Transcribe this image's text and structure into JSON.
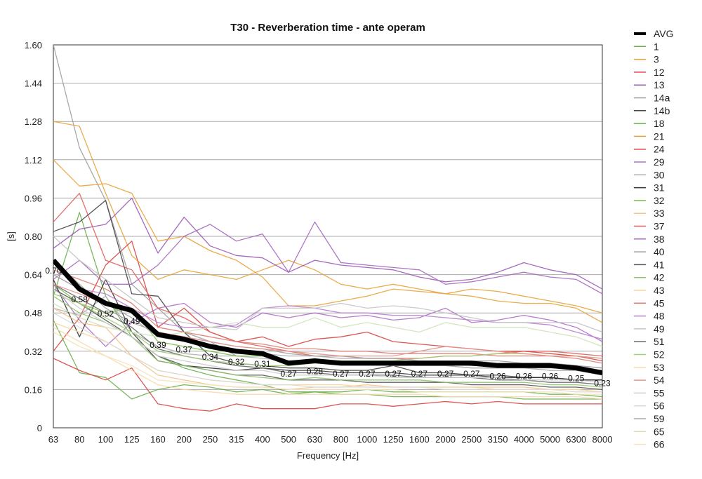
{
  "chart_data": {
    "type": "line",
    "title": "T30 - Reverberation time - ante operam",
    "xlabel": "Frequency [Hz]",
    "ylabel": "[s]",
    "categories": [
      "63",
      "80",
      "100",
      "125",
      "160",
      "200",
      "250",
      "315",
      "400",
      "500",
      "630",
      "800",
      "1000",
      "1250",
      "1600",
      "2000",
      "2500",
      "3150",
      "4000",
      "5000",
      "6300",
      "8000"
    ],
    "ylim": [
      0,
      1.6
    ],
    "yticks": [
      "1.60",
      "1.44",
      "1.28",
      "1.12",
      "0.96",
      "0.80",
      "0.64",
      "0.48",
      "0.32",
      "0.16",
      "0"
    ],
    "grid": true,
    "legend_position": "right",
    "series": [
      {
        "name": "AVG",
        "color": "#000000",
        "emphasis": true,
        "values": [
          0.7,
          0.58,
          0.52,
          0.49,
          0.39,
          0.37,
          0.34,
          0.32,
          0.31,
          0.27,
          0.28,
          0.27,
          0.27,
          0.27,
          0.27,
          0.27,
          0.27,
          0.26,
          0.26,
          0.26,
          0.25,
          0.23
        ],
        "labels": [
          "0.70",
          "0.58",
          "0.52",
          "0.49",
          "0.39",
          "0.37",
          "0.34",
          "0.32",
          "0.31",
          "0.27",
          "0.28",
          "0.27",
          "0.27",
          "0.27",
          "0.27",
          "0.27",
          "0.27",
          "0.26",
          "0.26",
          "0.26",
          "0.25",
          "0.23"
        ]
      },
      {
        "name": "1",
        "color": "#6ab04c",
        "values": [
          0.55,
          0.9,
          0.55,
          0.38,
          0.3,
          0.25,
          0.22,
          0.2,
          0.18,
          0.15,
          0.15,
          0.14,
          0.14,
          0.13,
          0.13,
          0.13,
          0.13,
          0.13,
          0.12,
          0.12,
          0.12,
          0.12
        ]
      },
      {
        "name": "3",
        "color": "#e8a33a",
        "values": [
          1.28,
          1.26,
          0.98,
          0.72,
          0.62,
          0.66,
          0.64,
          0.62,
          0.66,
          0.7,
          0.66,
          0.6,
          0.58,
          0.6,
          0.58,
          0.56,
          0.58,
          0.57,
          0.55,
          0.53,
          0.51,
          0.48
        ]
      },
      {
        "name": "12",
        "color": "#d64541",
        "values": [
          0.32,
          0.46,
          0.68,
          0.78,
          0.42,
          0.5,
          0.4,
          0.36,
          0.38,
          0.34,
          0.37,
          0.38,
          0.4,
          0.36,
          0.35,
          0.34,
          0.33,
          0.32,
          0.32,
          0.31,
          0.3,
          0.28
        ]
      },
      {
        "name": "13",
        "color": "#9b59b6",
        "values": [
          0.75,
          0.83,
          0.85,
          0.96,
          0.73,
          0.88,
          0.76,
          0.72,
          0.71,
          0.65,
          0.7,
          0.68,
          0.67,
          0.66,
          0.63,
          0.61,
          0.62,
          0.65,
          0.69,
          0.66,
          0.64,
          0.58
        ]
      },
      {
        "name": "14a",
        "color": "#9e9e9e",
        "values": [
          1.6,
          1.17,
          0.95,
          0.6,
          0.5,
          0.4,
          0.36,
          0.3,
          0.3,
          0.28,
          0.28,
          0.28,
          0.27,
          0.27,
          0.26,
          0.26,
          0.25,
          0.25,
          0.25,
          0.24,
          0.24,
          0.22
        ]
      },
      {
        "name": "14b",
        "color": "#444444",
        "values": [
          0.82,
          0.86,
          0.95,
          0.56,
          0.55,
          0.4,
          0.3,
          0.27,
          0.26,
          0.25,
          0.25,
          0.24,
          0.24,
          0.26,
          0.23,
          0.23,
          0.22,
          0.22,
          0.21,
          0.21,
          0.2,
          0.2
        ]
      },
      {
        "name": "18",
        "color": "#6ab04c",
        "values": [
          0.45,
          0.23,
          0.21,
          0.12,
          0.16,
          0.18,
          0.17,
          0.15,
          0.16,
          0.14,
          0.15,
          0.15,
          0.16,
          0.15,
          0.15,
          0.15,
          0.15,
          0.15,
          0.15,
          0.14,
          0.14,
          0.13
        ]
      },
      {
        "name": "21",
        "color": "#e8a33a",
        "values": [
          1.12,
          1.01,
          1.02,
          0.98,
          0.78,
          0.8,
          0.74,
          0.7,
          0.63,
          0.51,
          0.51,
          0.53,
          0.55,
          0.58,
          0.57,
          0.56,
          0.55,
          0.53,
          0.52,
          0.52,
          0.5,
          0.44
        ]
      },
      {
        "name": "24",
        "color": "#d64541",
        "values": [
          0.29,
          0.24,
          0.2,
          0.25,
          0.1,
          0.08,
          0.07,
          0.1,
          0.08,
          0.08,
          0.08,
          0.1,
          0.1,
          0.09,
          0.1,
          0.11,
          0.1,
          0.11,
          0.1,
          0.1,
          0.1,
          0.1
        ]
      },
      {
        "name": "29",
        "color": "#b06ec9",
        "values": [
          0.6,
          0.45,
          0.34,
          0.44,
          0.5,
          0.52,
          0.44,
          0.42,
          0.48,
          0.46,
          0.48,
          0.46,
          0.47,
          0.45,
          0.46,
          0.5,
          0.44,
          0.45,
          0.47,
          0.45,
          0.42,
          0.36
        ]
      },
      {
        "name": "30",
        "color": "#b0b0b0",
        "values": [
          0.5,
          0.47,
          0.55,
          0.4,
          0.34,
          0.31,
          0.3,
          0.3,
          0.29,
          0.28,
          0.28,
          0.27,
          0.27,
          0.26,
          0.26,
          0.26,
          0.25,
          0.25,
          0.25,
          0.25,
          0.25,
          0.24
        ]
      },
      {
        "name": "31",
        "color": "#333333",
        "values": [
          0.62,
          0.38,
          0.62,
          0.4,
          0.28,
          0.26,
          0.25,
          0.24,
          0.25,
          0.24,
          0.24,
          0.23,
          0.23,
          0.23,
          0.22,
          0.22,
          0.22,
          0.21,
          0.21,
          0.21,
          0.2,
          0.2
        ]
      },
      {
        "name": "32",
        "color": "#7dbf4a",
        "values": [
          0.6,
          0.52,
          0.48,
          0.5,
          0.36,
          0.34,
          0.32,
          0.3,
          0.3,
          0.28,
          0.28,
          0.28,
          0.27,
          0.27,
          0.27,
          0.27,
          0.26,
          0.26,
          0.26,
          0.26,
          0.25,
          0.23
        ]
      },
      {
        "name": "33",
        "color": "#f4c28a",
        "values": [
          0.5,
          0.44,
          0.42,
          0.3,
          0.22,
          0.2,
          0.18,
          0.17,
          0.17,
          0.16,
          0.17,
          0.17,
          0.18,
          0.17,
          0.17,
          0.17,
          0.17,
          0.17,
          0.17,
          0.16,
          0.16,
          0.15
        ]
      },
      {
        "name": "37",
        "color": "#e0605a",
        "values": [
          0.86,
          0.98,
          0.7,
          0.66,
          0.5,
          0.46,
          0.4,
          0.36,
          0.34,
          0.32,
          0.3,
          0.3,
          0.29,
          0.29,
          0.29,
          0.3,
          0.3,
          0.31,
          0.32,
          0.32,
          0.31,
          0.3
        ]
      },
      {
        "name": "38",
        "color": "#a569bd",
        "values": [
          0.62,
          0.7,
          0.6,
          0.6,
          0.68,
          0.8,
          0.85,
          0.78,
          0.81,
          0.65,
          0.86,
          0.69,
          0.68,
          0.67,
          0.66,
          0.6,
          0.61,
          0.63,
          0.65,
          0.63,
          0.62,
          0.56
        ]
      },
      {
        "name": "40",
        "color": "#a0a0a0",
        "values": [
          0.7,
          0.6,
          0.5,
          0.44,
          0.4,
          0.38,
          0.36,
          0.34,
          0.33,
          0.31,
          0.3,
          0.3,
          0.29,
          0.29,
          0.28,
          0.28,
          0.28,
          0.28,
          0.27,
          0.27,
          0.26,
          0.25
        ]
      },
      {
        "name": "41",
        "color": "#555555",
        "values": [
          0.58,
          0.52,
          0.45,
          0.38,
          0.3,
          0.26,
          0.24,
          0.22,
          0.22,
          0.2,
          0.2,
          0.2,
          0.19,
          0.19,
          0.19,
          0.19,
          0.18,
          0.18,
          0.18,
          0.17,
          0.17,
          0.16
        ]
      },
      {
        "name": "42",
        "color": "#8fc46a",
        "values": [
          0.55,
          0.48,
          0.44,
          0.38,
          0.28,
          0.26,
          0.24,
          0.22,
          0.21,
          0.2,
          0.21,
          0.2,
          0.2,
          0.2,
          0.2,
          0.19,
          0.19,
          0.19,
          0.19,
          0.18,
          0.18,
          0.17
        ]
      },
      {
        "name": "43",
        "color": "#f7d69a",
        "values": [
          0.44,
          0.4,
          0.36,
          0.3,
          0.24,
          0.22,
          0.2,
          0.19,
          0.18,
          0.18,
          0.18,
          0.18,
          0.17,
          0.17,
          0.17,
          0.17,
          0.17,
          0.16,
          0.16,
          0.16,
          0.16,
          0.15
        ]
      },
      {
        "name": "45",
        "color": "#e07a70",
        "values": [
          0.66,
          0.62,
          0.58,
          0.52,
          0.42,
          0.4,
          0.38,
          0.36,
          0.35,
          0.33,
          0.33,
          0.32,
          0.32,
          0.31,
          0.31,
          0.31,
          0.31,
          0.3,
          0.3,
          0.3,
          0.29,
          0.27
        ]
      },
      {
        "name": "48",
        "color": "#b77fcf",
        "values": [
          0.64,
          0.58,
          0.56,
          0.5,
          0.44,
          0.42,
          0.42,
          0.43,
          0.5,
          0.51,
          0.5,
          0.48,
          0.48,
          0.47,
          0.47,
          0.46,
          0.45,
          0.44,
          0.44,
          0.43,
          0.4,
          0.37
        ]
      },
      {
        "name": "49",
        "color": "#c4c4c4",
        "values": [
          0.8,
          0.7,
          0.62,
          0.54,
          0.46,
          0.44,
          0.42,
          0.41,
          0.5,
          0.5,
          0.5,
          0.52,
          0.5,
          0.51,
          0.5,
          0.48,
          0.46,
          0.44,
          0.44,
          0.44,
          0.44,
          0.4
        ]
      },
      {
        "name": "51",
        "color": "#666666",
        "values": [
          0.6,
          0.54,
          0.48,
          0.42,
          0.33,
          0.3,
          0.28,
          0.26,
          0.25,
          0.23,
          0.23,
          0.22,
          0.22,
          0.22,
          0.21,
          0.21,
          0.21,
          0.2,
          0.2,
          0.19,
          0.19,
          0.18
        ]
      },
      {
        "name": "52",
        "color": "#a3cf7a",
        "values": [
          0.56,
          0.52,
          0.46,
          0.4,
          0.32,
          0.3,
          0.28,
          0.27,
          0.26,
          0.26,
          0.27,
          0.28,
          0.28,
          0.28,
          0.29,
          0.3,
          0.3,
          0.31,
          0.31,
          0.3,
          0.3,
          0.29
        ]
      },
      {
        "name": "53",
        "color": "#f9d9a8",
        "values": [
          0.42,
          0.36,
          0.3,
          0.24,
          0.18,
          0.16,
          0.15,
          0.14,
          0.14,
          0.14,
          0.14,
          0.14,
          0.14,
          0.14,
          0.14,
          0.13,
          0.13,
          0.13,
          0.13,
          0.13,
          0.13,
          0.12
        ]
      },
      {
        "name": "54",
        "color": "#e8938c",
        "values": [
          0.6,
          0.56,
          0.52,
          0.48,
          0.4,
          0.38,
          0.36,
          0.34,
          0.33,
          0.32,
          0.31,
          0.3,
          0.3,
          0.3,
          0.32,
          0.34,
          0.33,
          0.32,
          0.31,
          0.3,
          0.3,
          0.29
        ]
      },
      {
        "name": "55",
        "color": "#cccccc",
        "values": [
          0.58,
          0.5,
          0.44,
          0.38,
          0.3,
          0.28,
          0.26,
          0.24,
          0.24,
          0.22,
          0.22,
          0.22,
          0.22,
          0.21,
          0.21,
          0.21,
          0.21,
          0.21,
          0.2,
          0.2,
          0.2,
          0.19
        ]
      },
      {
        "name": "56",
        "color": "#d9d9d9",
        "values": [
          0.48,
          0.42,
          0.36,
          0.3,
          0.24,
          0.22,
          0.2,
          0.19,
          0.18,
          0.18,
          0.17,
          0.17,
          0.17,
          0.17,
          0.17,
          0.16,
          0.16,
          0.16,
          0.16,
          0.16,
          0.15,
          0.15
        ]
      },
      {
        "name": "59",
        "color": "#a8a8a8",
        "values": [
          0.64,
          0.58,
          0.52,
          0.46,
          0.38,
          0.36,
          0.34,
          0.32,
          0.31,
          0.3,
          0.3,
          0.29,
          0.29,
          0.29,
          0.28,
          0.28,
          0.28,
          0.27,
          0.27,
          0.27,
          0.26,
          0.25
        ]
      },
      {
        "name": "65",
        "color": "#cfe3b8",
        "values": [
          0.52,
          0.46,
          0.42,
          0.4,
          0.38,
          0.4,
          0.42,
          0.44,
          0.42,
          0.42,
          0.46,
          0.42,
          0.44,
          0.42,
          0.4,
          0.44,
          0.42,
          0.42,
          0.42,
          0.4,
          0.38,
          0.34
        ]
      },
      {
        "name": "66",
        "color": "#f6e2b8",
        "values": [
          0.4,
          0.34,
          0.3,
          0.26,
          0.2,
          0.19,
          0.18,
          0.17,
          0.17,
          0.16,
          0.16,
          0.16,
          0.16,
          0.16,
          0.15,
          0.15,
          0.15,
          0.15,
          0.15,
          0.15,
          0.14,
          0.14
        ]
      }
    ]
  }
}
